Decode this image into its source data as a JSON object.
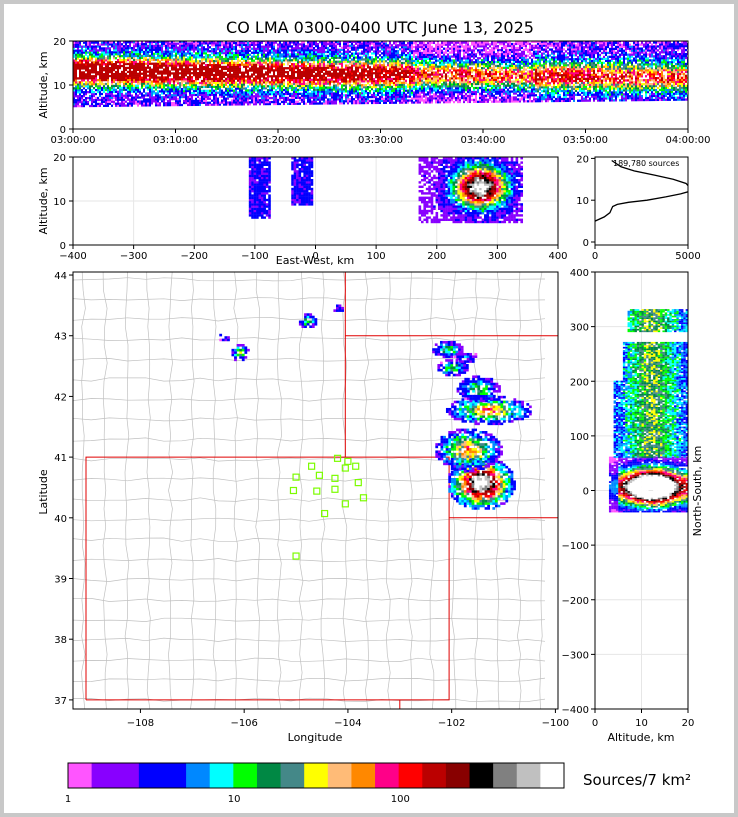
{
  "title": "CO LMA 0300-0400 UTC June 13, 2025",
  "colors": {
    "frame": "#c8c8c8",
    "county_lines": "#c0c0c0",
    "state_lines": "#e00000",
    "station_markers": "#7cfc00",
    "colorbar": [
      "#ff55ff",
      "#8800ff",
      "#8800ff",
      "#0000ff",
      "#0000ff",
      "#0088ff",
      "#00ffff",
      "#00ff00",
      "#008844",
      "#448888",
      "#ffff00",
      "#ffbb77",
      "#ff8800",
      "#ff0088",
      "#ff0000",
      "#bb0000",
      "#880000",
      "#000000",
      "#808080",
      "#c0c0c0",
      "#ffffff"
    ]
  },
  "chart_data": [
    {
      "id": "time_height",
      "type": "heatmap",
      "xlabel": "",
      "ylabel": "Altitude, km",
      "x_ticks": [
        "03:00:00",
        "03:10:00",
        "03:20:00",
        "03:30:00",
        "03:40:00",
        "03:50:00",
        "04:00:00"
      ],
      "x_range": [
        "03:00:00",
        "04:00:00"
      ],
      "ylim": [
        0,
        20
      ],
      "y_ticks": [
        0,
        10,
        20
      ]
    },
    {
      "id": "ew_height",
      "type": "heatmap",
      "xlabel": "East-West, km",
      "ylabel": "Altitude, km",
      "xlim": [
        -400,
        400
      ],
      "x_ticks": [
        -400,
        -300,
        -200,
        -100,
        0,
        100,
        200,
        300,
        400
      ],
      "ylim": [
        0,
        20
      ],
      "y_ticks": [
        0,
        10,
        20
      ],
      "clusters": [
        {
          "x": [
            -100,
            -85
          ],
          "y": [
            6,
            20
          ]
        },
        {
          "x": [
            -30,
            -15
          ],
          "y": [
            9,
            20
          ]
        },
        {
          "x": [
            180,
            330
          ],
          "y": [
            5,
            20
          ],
          "core_x": 270,
          "core_y": 13
        }
      ]
    },
    {
      "id": "altitude_histogram",
      "type": "line",
      "annotation": "189,780 sources",
      "xlim": [
        0,
        5000
      ],
      "x_ticks": [
        0,
        5000
      ],
      "ylim": [
        0,
        20
      ],
      "y_ticks": [
        0,
        10,
        20
      ],
      "series": [
        {
          "x": [
            0,
            500,
            800,
            900,
            950,
            1200,
            1800,
            2800,
            3800,
            4600,
            5000,
            5100,
            4900,
            4200,
            3200,
            2100,
            1400,
            900
          ],
          "y": [
            5,
            6,
            7,
            8,
            8.5,
            9,
            9.5,
            10,
            10.8,
            11.5,
            12,
            13,
            14,
            15,
            16,
            17,
            18,
            19.5
          ]
        }
      ]
    },
    {
      "id": "plan_view",
      "type": "scatter",
      "xlabel": "Longitude",
      "ylabel": "Latitude",
      "xlim": [
        -109.3,
        -99.95
      ],
      "x_ticks": [
        -108,
        -106,
        -104,
        -102,
        -100
      ],
      "ylim": [
        36.85,
        44.05
      ],
      "y_ticks": [
        37,
        38,
        39,
        40,
        41,
        42,
        43,
        44
      ],
      "stations": [
        {
          "lon": -104.2,
          "lat": 40.98
        },
        {
          "lon": -104.0,
          "lat": 40.93
        },
        {
          "lon": -104.05,
          "lat": 40.82
        },
        {
          "lon": -103.85,
          "lat": 40.85
        },
        {
          "lon": -104.7,
          "lat": 40.85
        },
        {
          "lon": -105.0,
          "lat": 40.67
        },
        {
          "lon": -104.55,
          "lat": 40.7
        },
        {
          "lon": -104.25,
          "lat": 40.65
        },
        {
          "lon": -103.8,
          "lat": 40.58
        },
        {
          "lon": -105.05,
          "lat": 40.45
        },
        {
          "lon": -104.6,
          "lat": 40.44
        },
        {
          "lon": -104.25,
          "lat": 40.47
        },
        {
          "lon": -103.7,
          "lat": 40.33
        },
        {
          "lon": -104.05,
          "lat": 40.23
        },
        {
          "lon": -104.45,
          "lat": 40.07
        },
        {
          "lon": -105.0,
          "lat": 39.37
        }
      ],
      "storms": [
        {
          "lon": -101.45,
          "lat": 40.55,
          "rlon": 0.55,
          "rlat": 0.38,
          "intensity": 3
        },
        {
          "lon": -101.7,
          "lat": 41.1,
          "rlon": 0.55,
          "rlat": 0.3,
          "intensity": 2
        },
        {
          "lon": -101.3,
          "lat": 41.75,
          "rlon": 0.7,
          "rlat": 0.2,
          "intensity": 2
        },
        {
          "lon": -101.5,
          "lat": 42.1,
          "rlon": 0.35,
          "rlat": 0.18,
          "intensity": 1
        },
        {
          "lon": -102.1,
          "lat": 42.75,
          "rlon": 0.25,
          "rlat": 0.12,
          "intensity": 1
        },
        {
          "lon": -102.0,
          "lat": 42.45,
          "rlon": 0.25,
          "rlat": 0.12,
          "intensity": 1
        },
        {
          "lon": -101.75,
          "lat": 42.62,
          "rlon": 0.2,
          "rlat": 0.08,
          "intensity": 0
        },
        {
          "lon": -104.8,
          "lat": 43.22,
          "rlon": 0.15,
          "rlat": 0.1,
          "intensity": 1
        },
        {
          "lon": -106.1,
          "lat": 42.7,
          "rlon": 0.15,
          "rlat": 0.12,
          "intensity": 1
        },
        {
          "lon": -106.4,
          "lat": 42.95,
          "rlon": 0.1,
          "rlat": 0.06,
          "intensity": 0
        },
        {
          "lon": -104.2,
          "lat": 43.42,
          "rlon": 0.1,
          "rlat": 0.05,
          "intensity": 0
        }
      ]
    },
    {
      "id": "ns_height",
      "type": "heatmap",
      "xlabel": "Altitude, km",
      "ylabel": "North-South, km",
      "xlim": [
        0,
        20
      ],
      "x_ticks": [
        0,
        10,
        20
      ],
      "ylim": [
        -400,
        400
      ],
      "y_ticks": [
        -400,
        -300,
        -200,
        -100,
        0,
        100,
        200,
        300,
        400
      ],
      "clusters": [
        {
          "y": [
            -40,
            60
          ],
          "core_y": 5,
          "x": [
            3,
            20
          ]
        },
        {
          "y": [
            60,
            200
          ],
          "x": [
            4,
            20
          ]
        },
        {
          "y": [
            200,
            270
          ],
          "x": [
            6,
            20
          ]
        },
        {
          "y": [
            290,
            330
          ],
          "x": [
            7,
            20
          ]
        }
      ]
    },
    {
      "id": "colorbar",
      "type": "heatmap",
      "label": "Sources/7 km²",
      "tick_labels": [
        "1",
        "10",
        "100"
      ]
    }
  ]
}
